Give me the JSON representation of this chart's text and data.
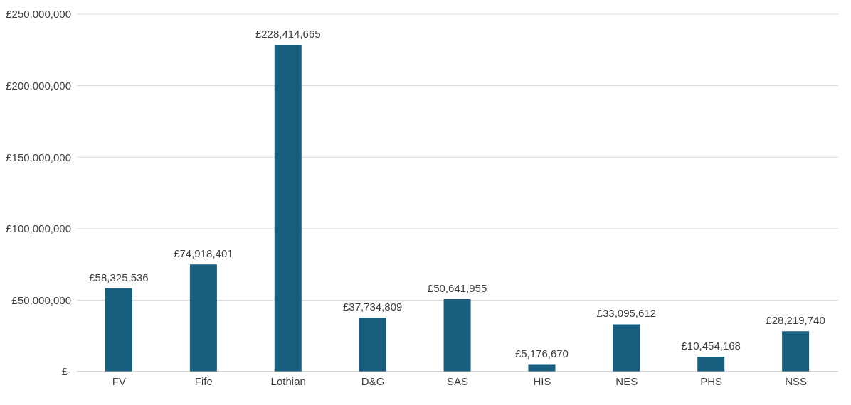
{
  "chart_data": {
    "type": "bar",
    "categories": [
      "FV",
      "Fife",
      "Lothian",
      "D&G",
      "SAS",
      "HIS",
      "NES",
      "PHS",
      "NSS"
    ],
    "values": [
      58325536,
      74918401,
      228414665,
      37734809,
      50641955,
      5176670,
      33095612,
      10454168,
      28219740
    ],
    "value_labels": [
      "£58,325,536",
      "£74,918,401",
      "£228,414,665",
      "£37,734,809",
      "£50,641,955",
      "£5,176,670",
      "£33,095,612",
      "£10,454,168",
      "£28,219,740"
    ],
    "color": "#175e7f",
    "ylim": [
      0,
      250000000
    ],
    "yticks": [
      {
        "value": 0,
        "label": "£-"
      },
      {
        "value": 50000000,
        "label": "£50,000,000"
      },
      {
        "value": 100000000,
        "label": "£100,000,000"
      },
      {
        "value": 150000000,
        "label": "£150,000,000"
      },
      {
        "value": 200000000,
        "label": "£200,000,000"
      },
      {
        "value": 250000000,
        "label": "£250,000,000"
      }
    ],
    "grid": "y",
    "legend": false
  }
}
